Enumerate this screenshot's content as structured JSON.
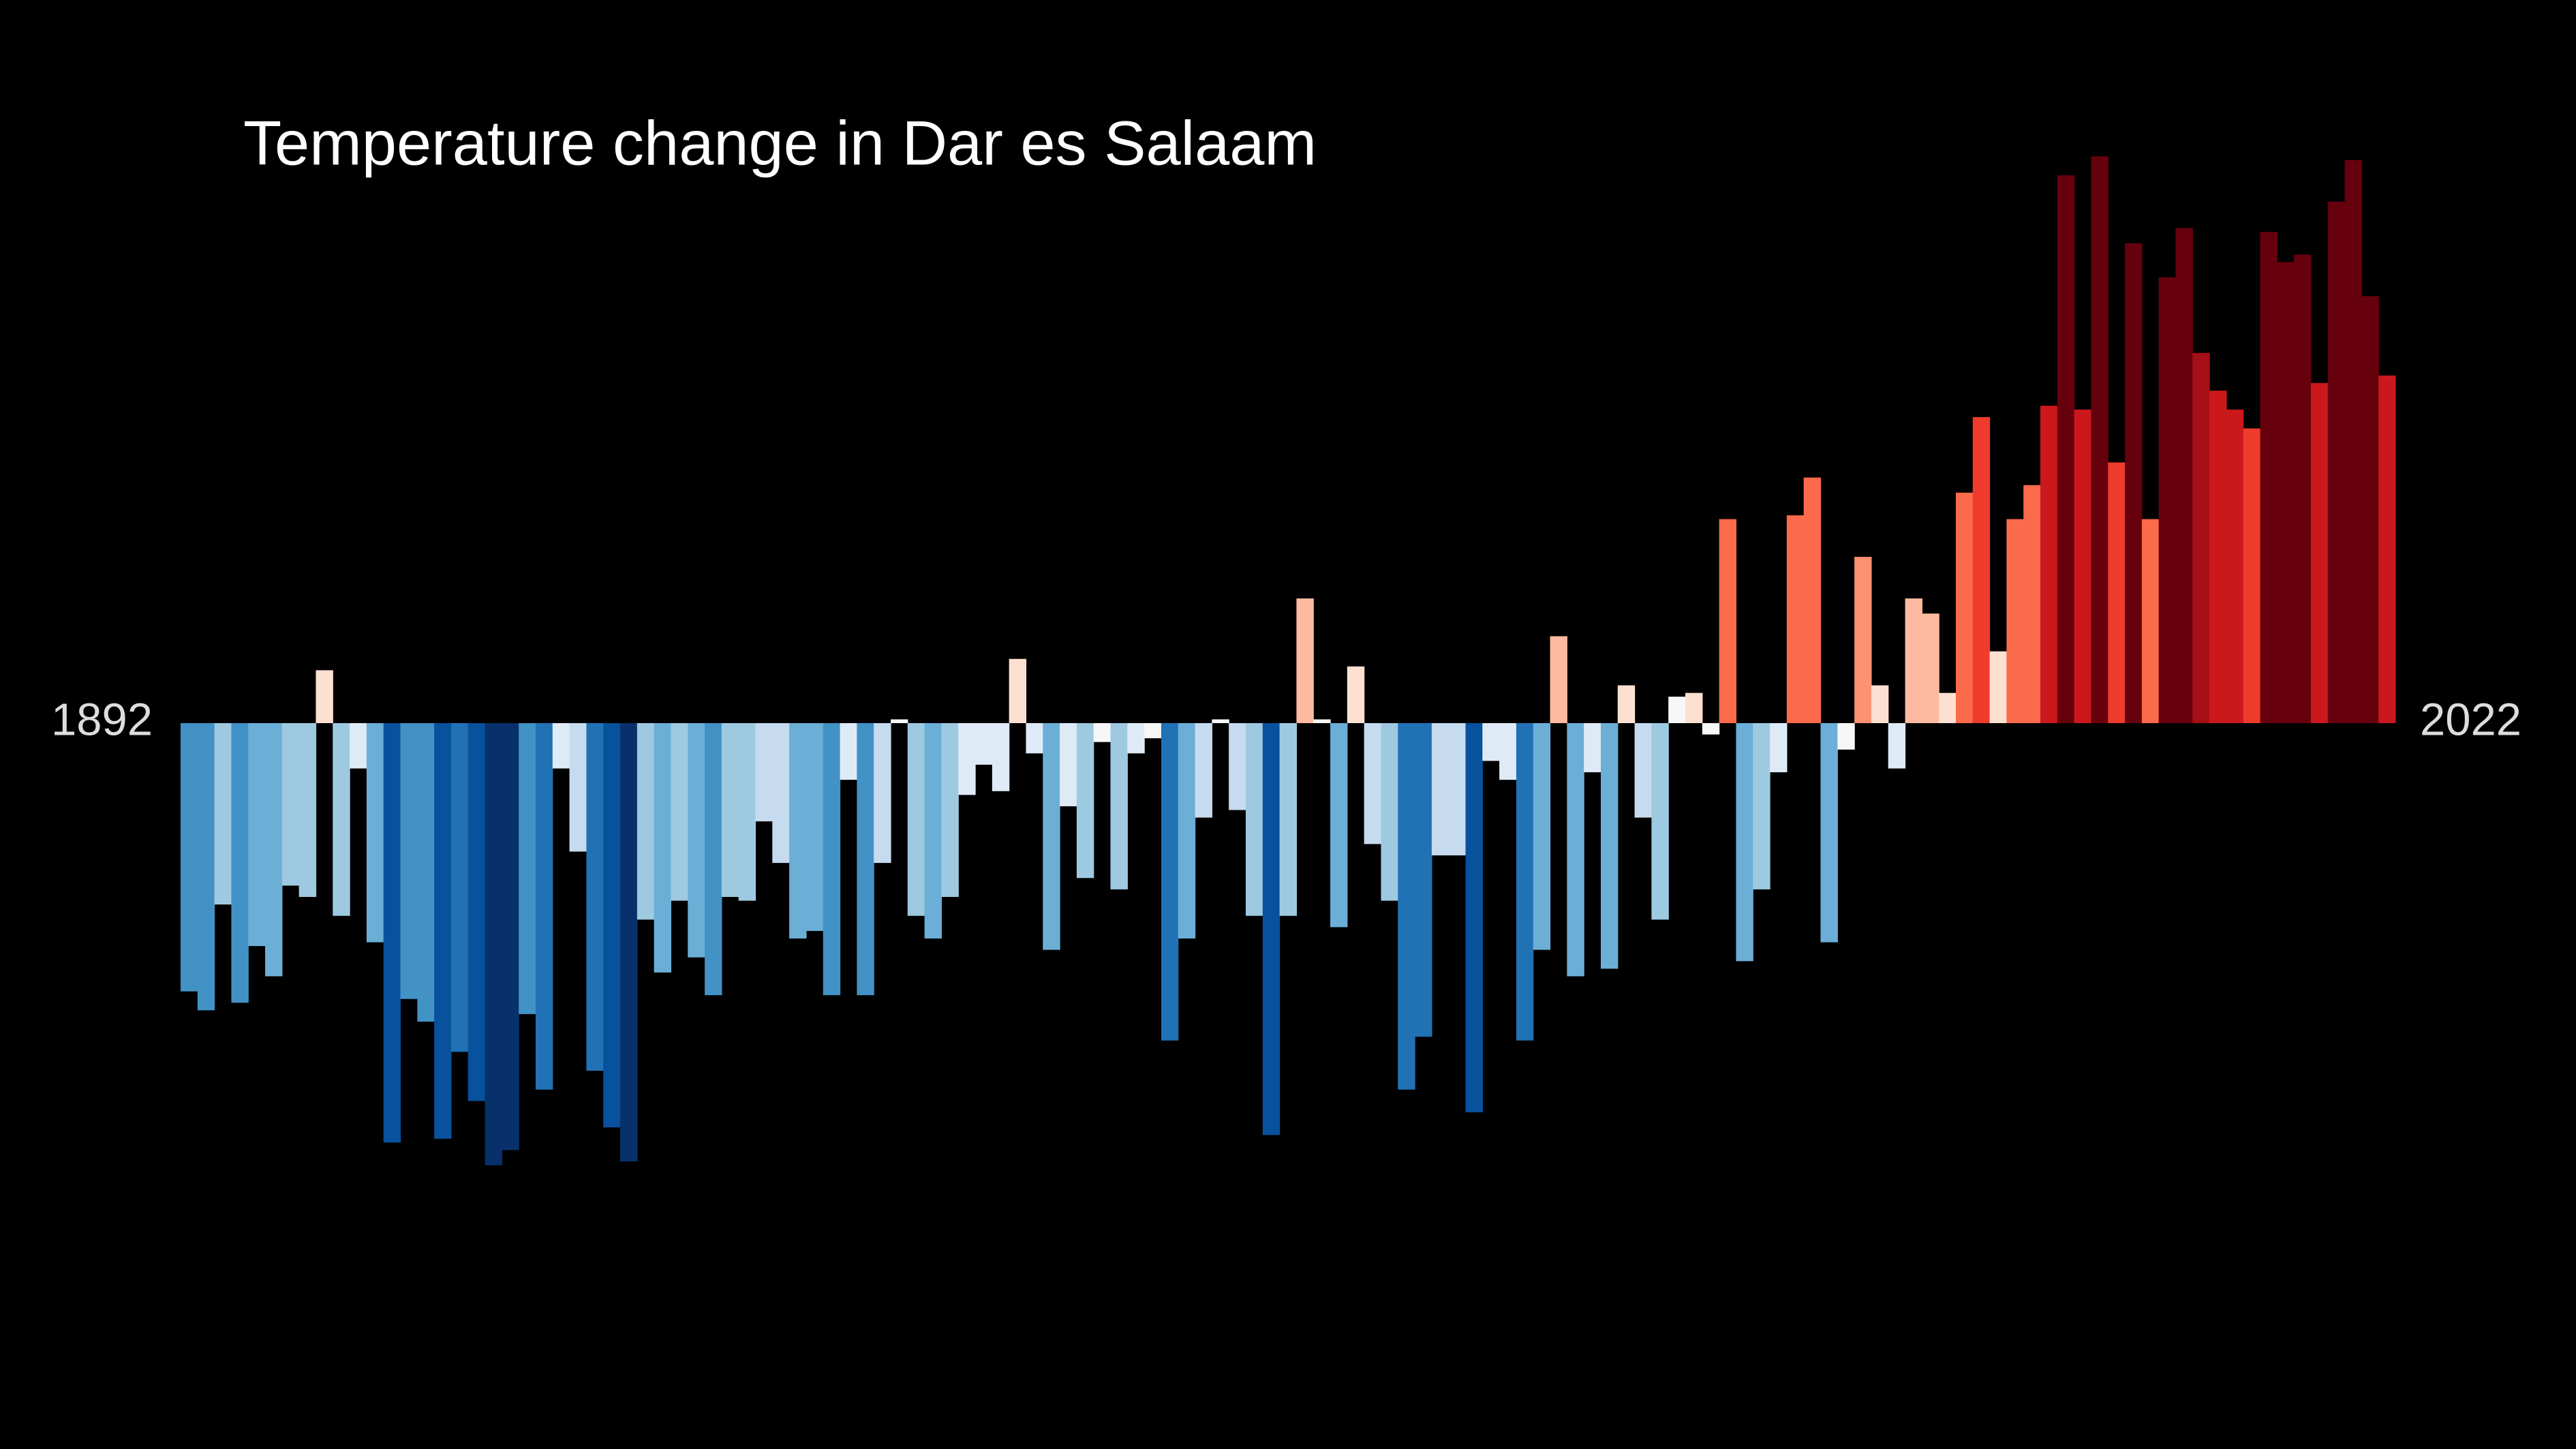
{
  "chart_data": {
    "type": "bar",
    "title": "Temperature change in Dar es Salaam",
    "categories": [
      1892,
      null,
      null,
      null,
      null,
      null,
      null,
      null,
      null,
      null,
      null,
      null,
      null,
      null,
      null,
      null,
      null,
      null,
      null,
      null,
      null,
      null,
      null,
      null,
      null,
      null,
      null,
      null,
      null,
      null,
      null,
      null,
      null,
      null,
      null,
      null,
      null,
      null,
      null,
      null,
      null,
      null,
      null,
      null,
      null,
      null,
      null,
      null,
      null,
      null,
      null,
      null,
      null,
      null,
      null,
      null,
      null,
      null,
      null,
      null,
      null,
      null,
      null,
      null,
      null,
      null,
      null,
      null,
      null,
      null,
      null,
      null,
      null,
      null,
      null,
      null,
      null,
      null,
      null,
      null,
      null,
      null,
      null,
      null,
      null,
      null,
      null,
      null,
      null,
      null,
      null,
      null,
      null,
      null,
      null,
      null,
      null,
      null,
      null,
      null,
      null,
      null,
      null,
      null,
      null,
      null,
      null,
      null,
      null,
      null,
      null,
      null,
      null,
      null,
      null,
      null,
      null,
      null,
      null,
      null,
      null,
      null,
      null,
      null,
      null,
      null,
      null,
      null,
      null,
      null,
      2022
    ],
    "values": [
      -0.71,
      -0.76,
      -0.48,
      -0.74,
      -0.59,
      -0.67,
      -0.43,
      -0.46,
      0.14,
      -0.51,
      -0.12,
      -0.58,
      -1.11,
      -0.73,
      -0.79,
      -1.1,
      -0.87,
      -1.0,
      -1.17,
      -1.13,
      -0.77,
      -0.97,
      -0.12,
      -0.34,
      -0.92,
      -1.07,
      -1.16,
      -0.52,
      -0.66,
      -0.47,
      -0.62,
      -0.72,
      -0.46,
      -0.47,
      -0.26,
      -0.37,
      -0.57,
      -0.55,
      -0.72,
      -0.15,
      -0.72,
      -0.37,
      0.01,
      -0.51,
      -0.57,
      -0.46,
      -0.19,
      -0.11,
      -0.18,
      0.17,
      -0.08,
      -0.6,
      -0.22,
      -0.41,
      -0.05,
      -0.44,
      -0.08,
      -0.04,
      -0.84,
      -0.57,
      -0.25,
      0.01,
      -0.23,
      -0.51,
      -1.09,
      -0.51,
      0.33,
      0.01,
      -0.54,
      0.15,
      -0.32,
      -0.47,
      -0.97,
      -0.83,
      -0.35,
      -0.35,
      -1.03,
      -0.1,
      -0.15,
      -0.84,
      -0.6,
      0.23,
      -0.67,
      -0.13,
      -0.65,
      0.1,
      -0.25,
      -0.52,
      0.07,
      0.08,
      -0.03,
      0.54,
      -0.63,
      -0.44,
      -0.13,
      0.55,
      0.65,
      -0.58,
      -0.07,
      0.44,
      0.1,
      -0.12,
      0.33,
      0.29,
      0.08,
      0.61,
      0.81,
      0.19,
      0.54,
      0.63,
      0.84,
      1.45,
      0.83,
      1.5,
      0.69,
      1.27,
      0.54,
      1.18,
      1.31,
      0.98,
      0.88,
      0.83,
      0.78,
      1.3,
      1.22,
      1.24,
      0.9,
      1.38,
      1.49,
      1.13,
      0.92
    ],
    "ylim": [
      -1.6,
      1.6
    ],
    "colormap": [
      "#08306b",
      "#08519c",
      "#2171b5",
      "#4292c6",
      "#6baed6",
      "#9ecae1",
      "#c6dbef",
      "#deebf7",
      "#f7f7f7",
      "#fee0d2",
      "#fcbba1",
      "#fc9272",
      "#fb6a4a",
      "#ef3b2c",
      "#cb181d",
      "#a50f15",
      "#67000d"
    ],
    "clim": [
      -1.2,
      1.2
    ],
    "background": "#000000"
  }
}
